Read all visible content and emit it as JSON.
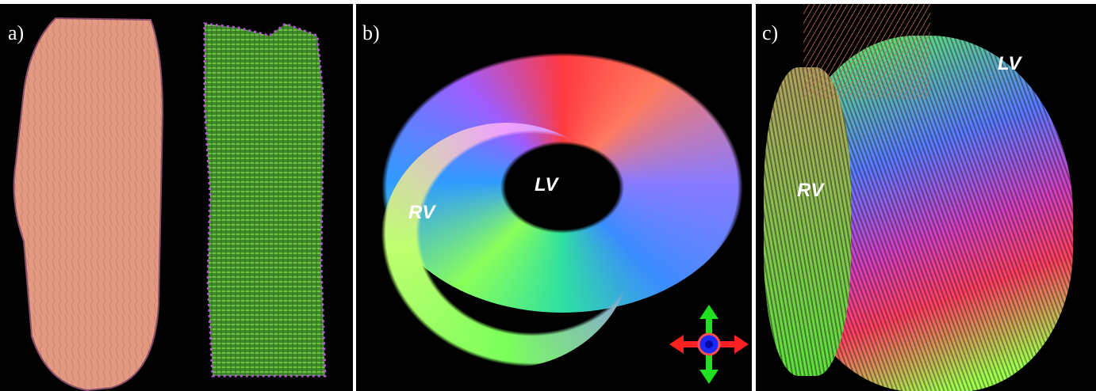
{
  "panels": [
    {
      "label": "a)"
    },
    {
      "label": "b)",
      "annotations": [
        "RV",
        "LV"
      ]
    },
    {
      "label": "c)",
      "annotations": [
        "RV",
        "LV"
      ]
    }
  ]
}
